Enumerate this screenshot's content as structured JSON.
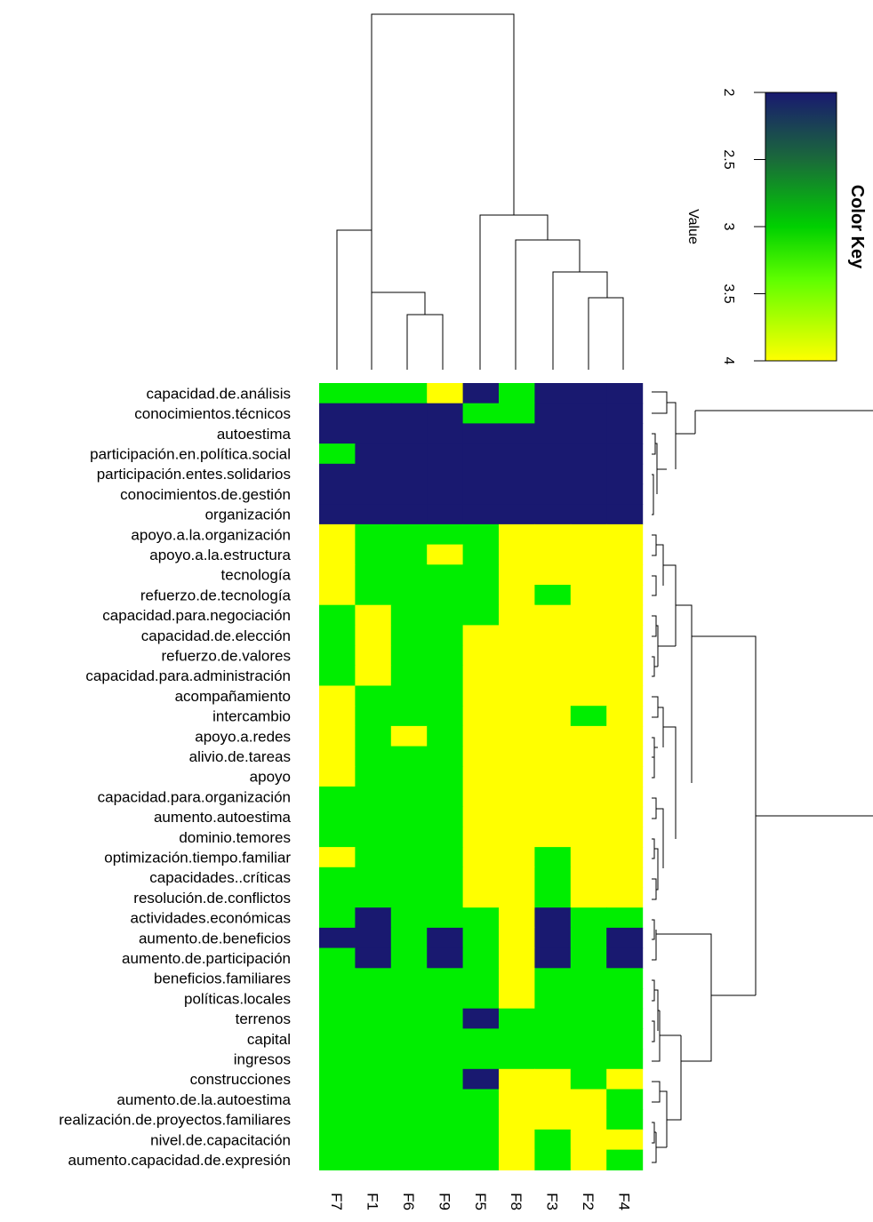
{
  "chart_data": {
    "type": "heatmap",
    "title": "",
    "columns": [
      "F7",
      "F1",
      "F6",
      "F9",
      "F5",
      "F8",
      "F3",
      "F2",
      "F4"
    ],
    "rows": [
      "capacidad.de.análisis",
      "conocimientos.técnicos",
      "autoestima",
      "participación.en.política.social",
      "participación.entes.solidarios",
      "conocimientos.de.gestión",
      "organización",
      "apoyo.a.la.organización",
      "apoyo.a.la.estructura",
      "tecnología",
      "refuerzo.de.tecnología",
      "capacidad.para.negociación",
      "capacidad.de.elección",
      "refuerzo.de.valores",
      "capacidad.para.administración",
      "acompañamiento",
      "intercambio",
      "apoyo.a.redes",
      "alivio.de.tareas",
      "apoyo",
      "capacidad.para.organización",
      "aumento.autoestima",
      "dominio.temores",
      "optimización.tiempo.familiar",
      "capacidades..críticas",
      "resolución.de.conflictos",
      "actividades.económicas",
      "aumento.de.beneficios",
      "aumento.de.participación",
      "beneficios.familiares",
      "políticas.locales",
      "terrenos",
      "capital",
      "ingresos",
      "construcciones",
      "aumento.de.la.autoestima",
      "realización.de.proyectos.familiares",
      "nivel.de.capacitación",
      "aumento.capacidad.de.expresión"
    ],
    "values": [
      [
        3,
        3,
        3,
        4,
        2,
        3,
        2,
        2,
        2
      ],
      [
        2,
        2,
        2,
        2,
        3,
        3,
        2,
        2,
        2
      ],
      [
        2,
        2,
        2,
        2,
        2,
        2,
        2,
        2,
        2
      ],
      [
        3,
        2,
        2,
        2,
        2,
        2,
        2,
        2,
        2
      ],
      [
        2,
        2,
        2,
        2,
        2,
        2,
        2,
        2,
        2
      ],
      [
        2,
        2,
        2,
        2,
        2,
        2,
        2,
        2,
        2
      ],
      [
        2,
        2,
        2,
        2,
        2,
        2,
        2,
        2,
        2
      ],
      [
        4,
        3,
        3,
        3,
        3,
        4,
        4,
        4,
        4
      ],
      [
        4,
        3,
        3,
        4,
        3,
        4,
        4,
        4,
        4
      ],
      [
        4,
        3,
        3,
        3,
        3,
        4,
        4,
        4,
        4
      ],
      [
        4,
        3,
        3,
        3,
        3,
        4,
        3,
        4,
        4
      ],
      [
        3,
        4,
        3,
        3,
        3,
        4,
        4,
        4,
        4
      ],
      [
        3,
        4,
        3,
        3,
        4,
        4,
        4,
        4,
        4
      ],
      [
        3,
        4,
        3,
        3,
        4,
        4,
        4,
        4,
        4
      ],
      [
        3,
        4,
        3,
        3,
        4,
        4,
        4,
        4,
        4
      ],
      [
        4,
        3,
        3,
        3,
        4,
        4,
        4,
        4,
        4
      ],
      [
        4,
        3,
        3,
        3,
        4,
        4,
        4,
        3,
        4
      ],
      [
        4,
        3,
        4,
        3,
        4,
        4,
        4,
        4,
        4
      ],
      [
        4,
        3,
        3,
        3,
        4,
        4,
        4,
        4,
        4
      ],
      [
        4,
        3,
        3,
        3,
        4,
        4,
        4,
        4,
        4
      ],
      [
        3,
        3,
        3,
        3,
        4,
        4,
        4,
        4,
        4
      ],
      [
        3,
        3,
        3,
        3,
        4,
        4,
        4,
        4,
        4
      ],
      [
        3,
        3,
        3,
        3,
        4,
        4,
        4,
        4,
        4
      ],
      [
        4,
        3,
        3,
        3,
        4,
        4,
        3,
        4,
        4
      ],
      [
        3,
        3,
        3,
        3,
        4,
        4,
        3,
        4,
        4
      ],
      [
        3,
        3,
        3,
        3,
        4,
        4,
        3,
        4,
        4
      ],
      [
        3,
        2,
        3,
        3,
        3,
        4,
        2,
        3,
        3
      ],
      [
        2,
        2,
        3,
        2,
        3,
        4,
        2,
        3,
        2
      ],
      [
        3,
        2,
        3,
        2,
        3,
        4,
        2,
        3,
        2
      ],
      [
        3,
        3,
        3,
        3,
        3,
        4,
        3,
        3,
        3
      ],
      [
        3,
        3,
        3,
        3,
        3,
        4,
        3,
        3,
        3
      ],
      [
        3,
        3,
        3,
        3,
        2,
        3,
        3,
        3,
        3
      ],
      [
        3,
        3,
        3,
        3,
        3,
        3,
        3,
        3,
        3
      ],
      [
        3,
        3,
        3,
        3,
        3,
        3,
        3,
        3,
        3
      ],
      [
        3,
        3,
        3,
        3,
        2,
        4,
        4,
        3,
        4
      ],
      [
        3,
        3,
        3,
        3,
        3,
        4,
        4,
        4,
        3
      ],
      [
        3,
        3,
        3,
        3,
        3,
        4,
        4,
        4,
        3
      ],
      [
        3,
        3,
        3,
        3,
        3,
        4,
        3,
        4,
        4
      ],
      [
        3,
        3,
        3,
        3,
        3,
        4,
        3,
        4,
        3
      ]
    ],
    "color_key": {
      "title": "Color Key",
      "label": "Value",
      "ticks": [
        "2",
        "2.5",
        "3",
        "3.5",
        "4"
      ],
      "range": [
        2,
        4
      ],
      "colors": {
        "low": "#191970",
        "mid": "#00ff00",
        "high": "#ffff00"
      }
    },
    "col_dendrogram": true,
    "row_dendrogram": true,
    "legend_placement": "top-right"
  }
}
